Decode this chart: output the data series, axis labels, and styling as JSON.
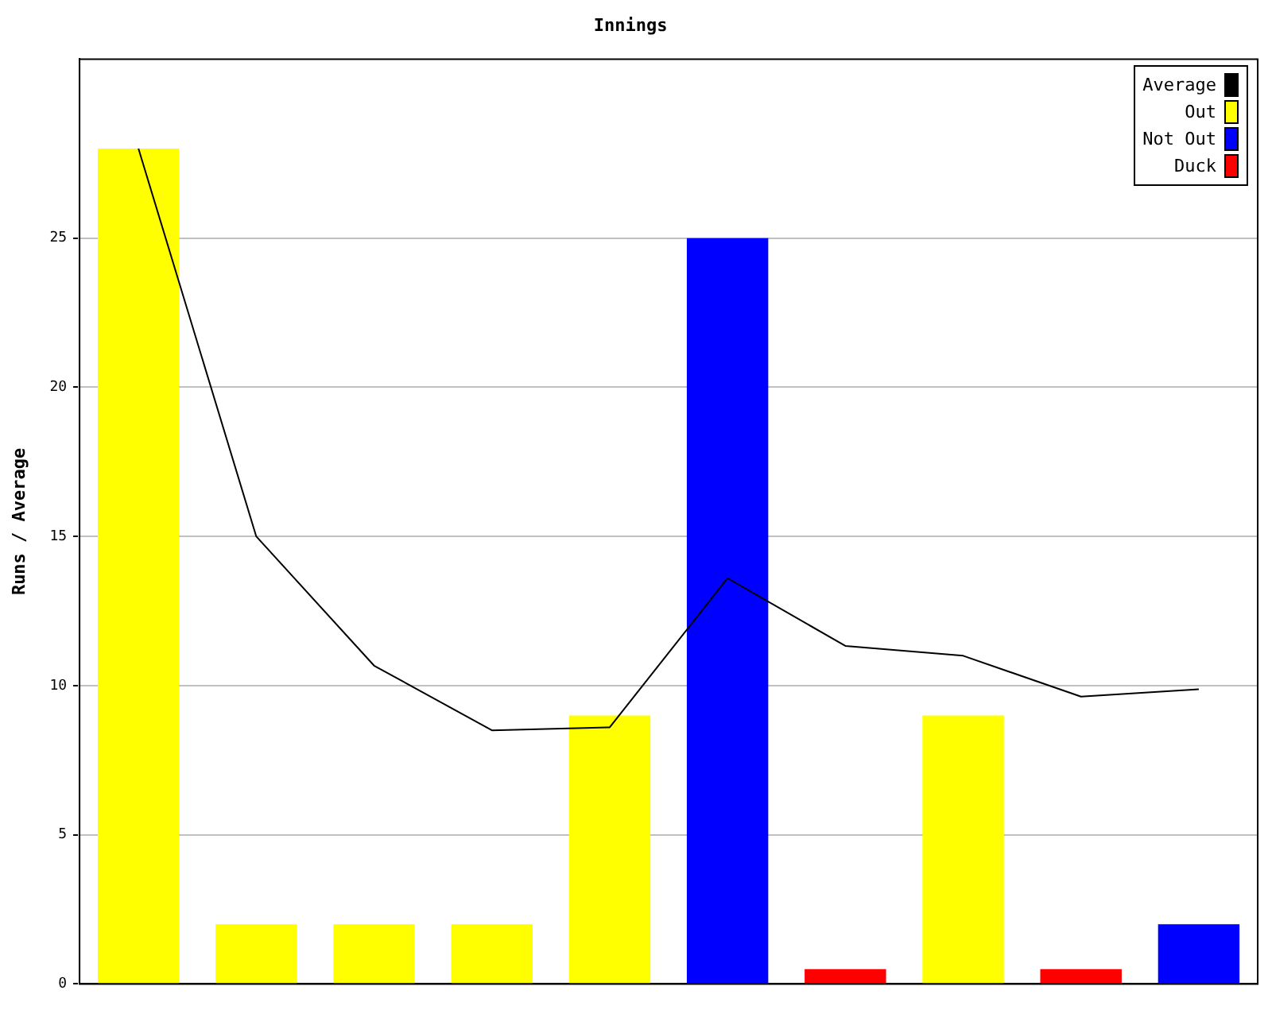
{
  "chart_data": {
    "type": "bar",
    "title": "Innings",
    "ylabel": "Runs / Average",
    "stacked": true,
    "categories": [
      null,
      null,
      null,
      null,
      null,
      null,
      null,
      null,
      null,
      null
    ],
    "series": [
      {
        "name": "Average",
        "type": "line",
        "color": "#000000",
        "values": [
          28,
          15,
          10.67,
          8.5,
          8.6,
          13.6,
          11.33,
          11,
          9.63,
          9.88
        ]
      },
      {
        "name": "Out",
        "color": "#ffff00",
        "values": [
          28,
          2,
          2,
          2,
          9,
          null,
          null,
          9,
          null,
          null
        ]
      },
      {
        "name": "Not Out",
        "color": "#0000ff",
        "values": [
          null,
          null,
          null,
          null,
          null,
          25,
          null,
          null,
          null,
          2
        ]
      },
      {
        "name": "Duck",
        "color": "#ff0000",
        "values": [
          null,
          null,
          null,
          null,
          null,
          null,
          0.5,
          null,
          0.5,
          null
        ]
      }
    ],
    "ylim": [
      0,
      31
    ],
    "yticks": [
      0,
      5,
      10,
      15,
      20,
      25
    ],
    "grid": "y",
    "legend": "top right",
    "marker": "none",
    "line_style": "solid"
  }
}
